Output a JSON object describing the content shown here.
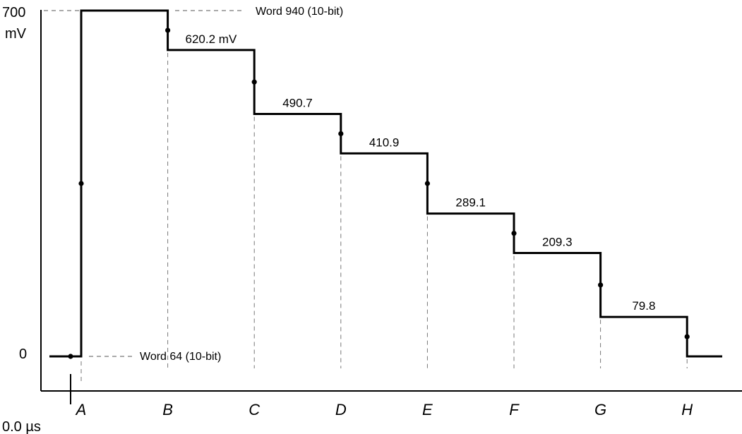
{
  "chart_data": {
    "type": "line",
    "title": "",
    "ylabel": "mV",
    "xlabel": "",
    "y_ticks": [
      "700",
      "0"
    ],
    "ylim": [
      0,
      700
    ],
    "origin_label": "0.0 µs",
    "categories": [
      "A",
      "B",
      "C",
      "D",
      "E",
      "F",
      "G",
      "H"
    ],
    "series": [
      {
        "values": [
          700,
          620.2,
          490.7,
          410.9,
          289.1,
          209.3,
          79.8,
          0
        ]
      }
    ],
    "level_labels": [
      "620.2 mV",
      "490.7",
      "410.9",
      "289.1",
      "209.3",
      "79.8"
    ],
    "annotations": {
      "top": "Word 940 (10-bit)",
      "bottom": "Word 64 (10-bit)"
    },
    "grid": false,
    "line_color": "#000000"
  }
}
